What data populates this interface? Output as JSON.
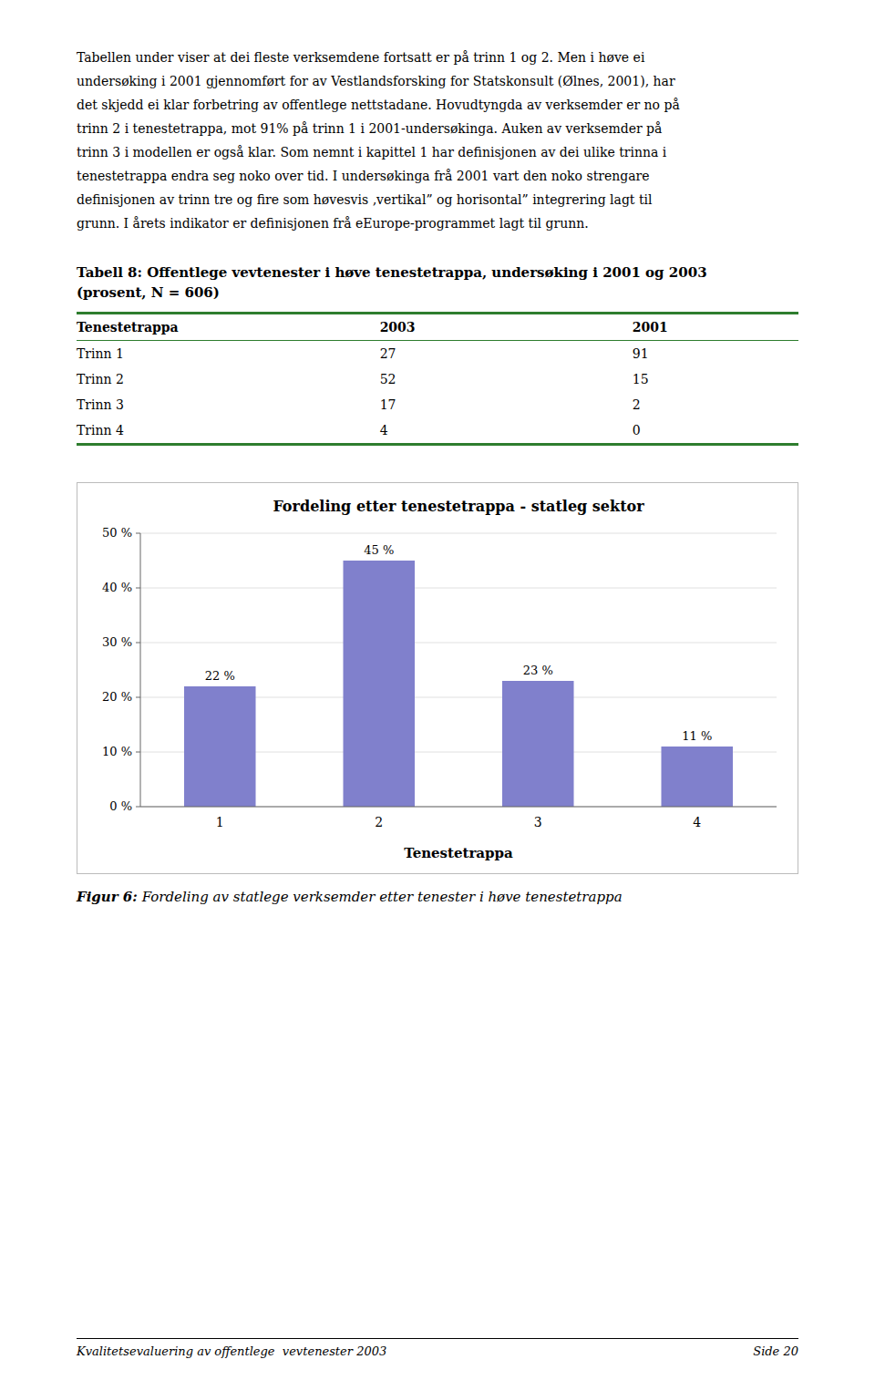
{
  "body_text_lines": [
    "Tabellen under viser at dei fleste verksemdene fortsatt er på trinn 1 og 2. Men i høve ei",
    "undersøking i 2001 gjennomført for av Vestlandsforsking for Statskonsult (Ølnes, 2001), har",
    "det skjedd ei klar forbetring av offentlege nettstadane. Hovudtyngda av verksemder er no på",
    "trinn 2 i tenestetrappa, mot 91% på trinn 1 i 2001-undersøkinga. Auken av verksemder på",
    "trinn 3 i modellen er også klar. Som nemnt i kapittel 1 har definisjonen av dei ulike trinna i",
    "tenestetrappa endra seg noko over tid. I undersøkinga frå 2001 vart den noko strengare",
    "definisjonen av trinn tre og fire som høvesvis ‚vertikal” og horisontal” integrering lagt til",
    "grunn. I årets indikator er definisjonen frå eEurope-programmet lagt til grunn."
  ],
  "table": {
    "title": [
      "Tabell 8: Offentlege vevtenester i høve tenestetrappa, undersøking i 2001 og 2003",
      "(prosent, N = 606)"
    ],
    "headers": [
      "Tenestetrappa",
      "2003",
      "2001"
    ],
    "rows": [
      [
        "Trinn 1",
        "27",
        "91"
      ],
      [
        "Trinn 2",
        "52",
        "15"
      ],
      [
        "Trinn 3",
        "17",
        "2"
      ],
      [
        "Trinn 4",
        "4",
        "0"
      ]
    ],
    "line_color": "#2e7d2e"
  },
  "chart_data": {
    "type": "bar",
    "title": "Fordeling etter tenestetrappa - statleg sektor",
    "xlabel": "Tenestetrappa",
    "categories": [
      "1",
      "2",
      "3",
      "4"
    ],
    "values": [
      22,
      45,
      23,
      11
    ],
    "value_labels": [
      "22 %",
      "45 %",
      "23 %",
      "11 %"
    ],
    "data_labels": true,
    "color": "#8080cc",
    "ylim": [
      0,
      50
    ],
    "yticks": [
      {
        "value": 0,
        "label": "0 %"
      },
      {
        "value": 10,
        "label": "10 %"
      },
      {
        "value": 20,
        "label": "20 %"
      },
      {
        "value": 30,
        "label": "30 %"
      },
      {
        "value": 40,
        "label": "40 %"
      },
      {
        "value": 50,
        "label": "50 %"
      }
    ],
    "grid": true
  },
  "figcaption": {
    "label": "Figur 6:",
    "text": "Fordeling av statlege verksemder etter tenester i høve tenestetrappa"
  },
  "footer": {
    "left": "Kvalitetsevaluering av offentlege  vevtenester 2003",
    "right": "Side 20"
  }
}
